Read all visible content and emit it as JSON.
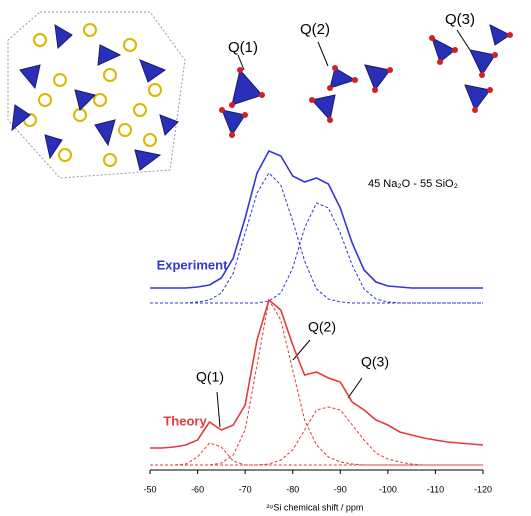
{
  "chart_data": {
    "type": "line",
    "structure_labels": [
      "Q(1)",
      "Q(2)",
      "Q(3)"
    ],
    "composition": "45 Na₂O - 55 SiO₂",
    "annotations": [
      "Q(1)",
      "Q(2)",
      "Q(3)"
    ],
    "xlabel": "²⁹Si chemical shift / ppm",
    "xlim": [
      -50,
      -120
    ],
    "xticks": [
      -50,
      -60,
      -70,
      -80,
      -90,
      -100,
      -110,
      -120
    ],
    "x": [
      -50,
      -52.5,
      -55,
      -57.5,
      -60,
      -62.5,
      -65,
      -67.5,
      -70,
      -72.5,
      -75,
      -77.5,
      -80,
      -82.5,
      -85,
      -87.5,
      -90,
      -92.5,
      -95,
      -97.5,
      -100,
      -102.5,
      -105,
      -107.5,
      -110,
      -112.5,
      -115,
      -117.5,
      -120
    ],
    "series": [
      {
        "name": "Experiment",
        "color": "#3636d4",
        "dash": false,
        "values": [
          0,
          0,
          0,
          0,
          1,
          3,
          10,
          30,
          70,
          115,
          137,
          132,
          112,
          106,
          110,
          104,
          80,
          45,
          18,
          6,
          2,
          1,
          0,
          0,
          0,
          0,
          0,
          0,
          0
        ]
      },
      {
        "color": "#3636d4",
        "dash": true,
        "values": [
          0,
          0,
          0,
          0,
          1,
          3,
          10,
          30,
          70,
          110,
          130,
          118,
          82,
          42,
          14,
          4,
          1,
          0,
          0,
          0,
          0,
          0,
          0,
          0,
          0,
          0,
          0,
          0,
          0
        ]
      },
      {
        "color": "#3636d4",
        "dash": true,
        "values": [
          0,
          0,
          0,
          0,
          0,
          0,
          0,
          0,
          0,
          0,
          2,
          10,
          35,
          75,
          100,
          95,
          70,
          38,
          14,
          4,
          1,
          0,
          0,
          0,
          0,
          0,
          0,
          0,
          0
        ]
      },
      {
        "name": "Theory",
        "color": "#e23c3c",
        "dash": false,
        "values": [
          2,
          2,
          3,
          5,
          10,
          28,
          20,
          25,
          45,
          110,
          150,
          140,
          105,
          75,
          78,
          72,
          68,
          48,
          40,
          30,
          25,
          18,
          15,
          12,
          10,
          8,
          7,
          6,
          5
        ]
      },
      {
        "color": "#e23c3c",
        "dash": true,
        "values": [
          0,
          0,
          0,
          1,
          8,
          22,
          18,
          4,
          0,
          0,
          0,
          0,
          0,
          0,
          0,
          0,
          0,
          0,
          0,
          0,
          0,
          0,
          0,
          0,
          0,
          0,
          0,
          0,
          0
        ]
      },
      {
        "color": "#e23c3c",
        "dash": true,
        "values": [
          0,
          0,
          0,
          0,
          0,
          0,
          2,
          10,
          35,
          100,
          165,
          145,
          95,
          45,
          20,
          8,
          3,
          1,
          0,
          0,
          0,
          0,
          0,
          0,
          0,
          0,
          0,
          0,
          0
        ]
      },
      {
        "color": "#e23c3c",
        "dash": true,
        "values": [
          0,
          0,
          0,
          0,
          0,
          0,
          0,
          0,
          0,
          0,
          1,
          5,
          15,
          35,
          55,
          58,
          55,
          40,
          25,
          12,
          6,
          3,
          1,
          0,
          0,
          0,
          0,
          0,
          0
        ]
      }
    ]
  }
}
